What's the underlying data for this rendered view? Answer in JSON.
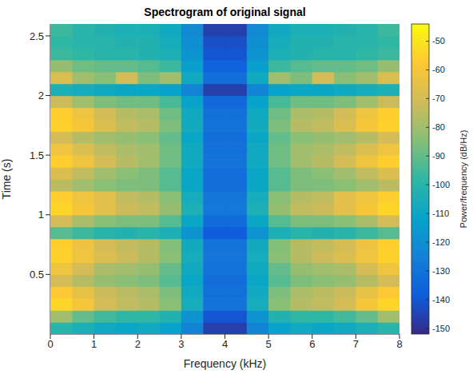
{
  "chart_data": {
    "type": "heatmap",
    "title": "Spectrogram of original signal",
    "xlabel": "Frequency (kHz)",
    "ylabel": "Time (s)",
    "x": [
      0.25,
      0.75,
      1.25,
      1.75,
      2.25,
      2.75,
      3.25,
      3.75,
      4.25,
      4.75,
      5.25,
      5.75,
      6.25,
      6.75,
      7.25,
      7.75
    ],
    "y": [
      0.05,
      0.15,
      0.25,
      0.35,
      0.45,
      0.55,
      0.65,
      0.75,
      0.85,
      0.95,
      1.05,
      1.15,
      1.25,
      1.35,
      1.45,
      1.55,
      1.65,
      1.75,
      1.85,
      1.95,
      2.05,
      2.15,
      2.25,
      2.35,
      2.45,
      2.55
    ],
    "cells": [
      [
        -100,
        -104,
        -108,
        -110,
        -108,
        -112,
        -124,
        -146,
        -146,
        -124,
        -112,
        -108,
        -110,
        -108,
        -104,
        -100
      ],
      [
        -80,
        -90,
        -95,
        -98,
        -98,
        -102,
        -118,
        -140,
        -140,
        -118,
        -102,
        -98,
        -98,
        -95,
        -90,
        -80
      ],
      [
        -54,
        -60,
        -70,
        -74,
        -76,
        -84,
        -106,
        -130,
        -130,
        -106,
        -84,
        -76,
        -74,
        -70,
        -60,
        -54
      ],
      [
        -58,
        -64,
        -72,
        -75,
        -78,
        -86,
        -108,
        -131,
        -131,
        -108,
        -86,
        -78,
        -75,
        -72,
        -64,
        -58
      ],
      [
        -70,
        -76,
        -82,
        -84,
        -86,
        -92,
        -110,
        -132,
        -132,
        -110,
        -92,
        -86,
        -84,
        -82,
        -76,
        -70
      ],
      [
        -62,
        -70,
        -78,
        -80,
        -82,
        -90,
        -108,
        -130,
        -130,
        -108,
        -90,
        -82,
        -80,
        -78,
        -70,
        -62
      ],
      [
        -55,
        -62,
        -68,
        -72,
        -76,
        -84,
        -106,
        -129,
        -129,
        -106,
        -84,
        -76,
        -72,
        -68,
        -62,
        -55
      ],
      [
        -56,
        -63,
        -70,
        -74,
        -76,
        -85,
        -107,
        -130,
        -130,
        -107,
        -85,
        -76,
        -74,
        -70,
        -63,
        -56
      ],
      [
        -92,
        -96,
        -100,
        -102,
        -100,
        -104,
        -118,
        -138,
        -138,
        -118,
        -104,
        -100,
        -102,
        -100,
        -96,
        -92
      ],
      [
        -70,
        -78,
        -84,
        -86,
        -86,
        -92,
        -110,
        -133,
        -133,
        -110,
        -92,
        -86,
        -86,
        -84,
        -78,
        -70
      ],
      [
        -54,
        -60,
        -66,
        -72,
        -74,
        -82,
        -104,
        -128,
        -128,
        -104,
        -82,
        -74,
        -72,
        -66,
        -60,
        -54
      ],
      [
        -56,
        -62,
        -66,
        -74,
        -76,
        -84,
        -106,
        -129,
        -129,
        -106,
        -84,
        -76,
        -74,
        -66,
        -62,
        -56
      ],
      [
        -75,
        -80,
        -84,
        -86,
        -86,
        -92,
        -110,
        -132,
        -132,
        -110,
        -92,
        -86,
        -86,
        -84,
        -80,
        -75
      ],
      [
        -68,
        -74,
        -80,
        -84,
        -86,
        -92,
        -110,
        -132,
        -132,
        -110,
        -92,
        -86,
        -84,
        -80,
        -74,
        -68
      ],
      [
        -56,
        -62,
        -70,
        -76,
        -80,
        -88,
        -108,
        -130,
        -130,
        -108,
        -88,
        -80,
        -76,
        -70,
        -62,
        -56
      ],
      [
        -62,
        -68,
        -74,
        -78,
        -80,
        -88,
        -108,
        -131,
        -131,
        -108,
        -88,
        -80,
        -78,
        -74,
        -68,
        -62
      ],
      [
        -70,
        -76,
        -80,
        -82,
        -84,
        -90,
        -110,
        -132,
        -132,
        -110,
        -90,
        -84,
        -82,
        -80,
        -76,
        -70
      ],
      [
        -55,
        -60,
        -68,
        -74,
        -76,
        -86,
        -107,
        -130,
        -130,
        -107,
        -86,
        -76,
        -74,
        -68,
        -60,
        -55
      ],
      [
        -56,
        -62,
        -70,
        -76,
        -78,
        -88,
        -108,
        -131,
        -131,
        -108,
        -88,
        -78,
        -76,
        -70,
        -62,
        -56
      ],
      [
        -72,
        -80,
        -86,
        -88,
        -88,
        -94,
        -112,
        -134,
        -134,
        -112,
        -94,
        -88,
        -88,
        -86,
        -80,
        -72
      ],
      [
        -104,
        -106,
        -108,
        -110,
        -110,
        -112,
        -124,
        -146,
        -146,
        -124,
        -112,
        -110,
        -110,
        -108,
        -106,
        -104
      ],
      [
        -68,
        -80,
        -84,
        -70,
        -86,
        -80,
        -108,
        -132,
        -132,
        -108,
        -80,
        -86,
        -70,
        -84,
        -80,
        -68
      ],
      [
        -82,
        -88,
        -90,
        -90,
        -92,
        -96,
        -114,
        -136,
        -136,
        -114,
        -96,
        -92,
        -90,
        -90,
        -88,
        -82
      ],
      [
        -96,
        -98,
        -100,
        -100,
        -102,
        -104,
        -118,
        -140,
        -140,
        -118,
        -104,
        -102,
        -100,
        -100,
        -98,
        -96
      ],
      [
        -98,
        -100,
        -100,
        -102,
        -102,
        -106,
        -120,
        -142,
        -142,
        -120,
        -106,
        -102,
        -102,
        -100,
        -100,
        -98
      ],
      [
        -96,
        -100,
        -102,
        -104,
        -104,
        -108,
        -122,
        -146,
        -146,
        -122,
        -108,
        -104,
        -104,
        -102,
        -100,
        -96
      ]
    ],
    "xlim": [
      0,
      8
    ],
    "xticks": [
      0,
      1,
      2,
      3,
      4,
      5,
      6,
      7,
      8
    ],
    "ylim": [
      0,
      2.6
    ],
    "yticks": [
      0.5,
      1,
      1.5,
      2,
      2.5
    ],
    "colorbar_range": [
      -152,
      -44
    ],
    "colorbar_ticks": [
      -150,
      -140,
      -130,
      -120,
      -110,
      -100,
      -90,
      -80,
      -70,
      -60,
      -50
    ],
    "colorbar_label": "Power/frequency (dB/Hz)"
  }
}
